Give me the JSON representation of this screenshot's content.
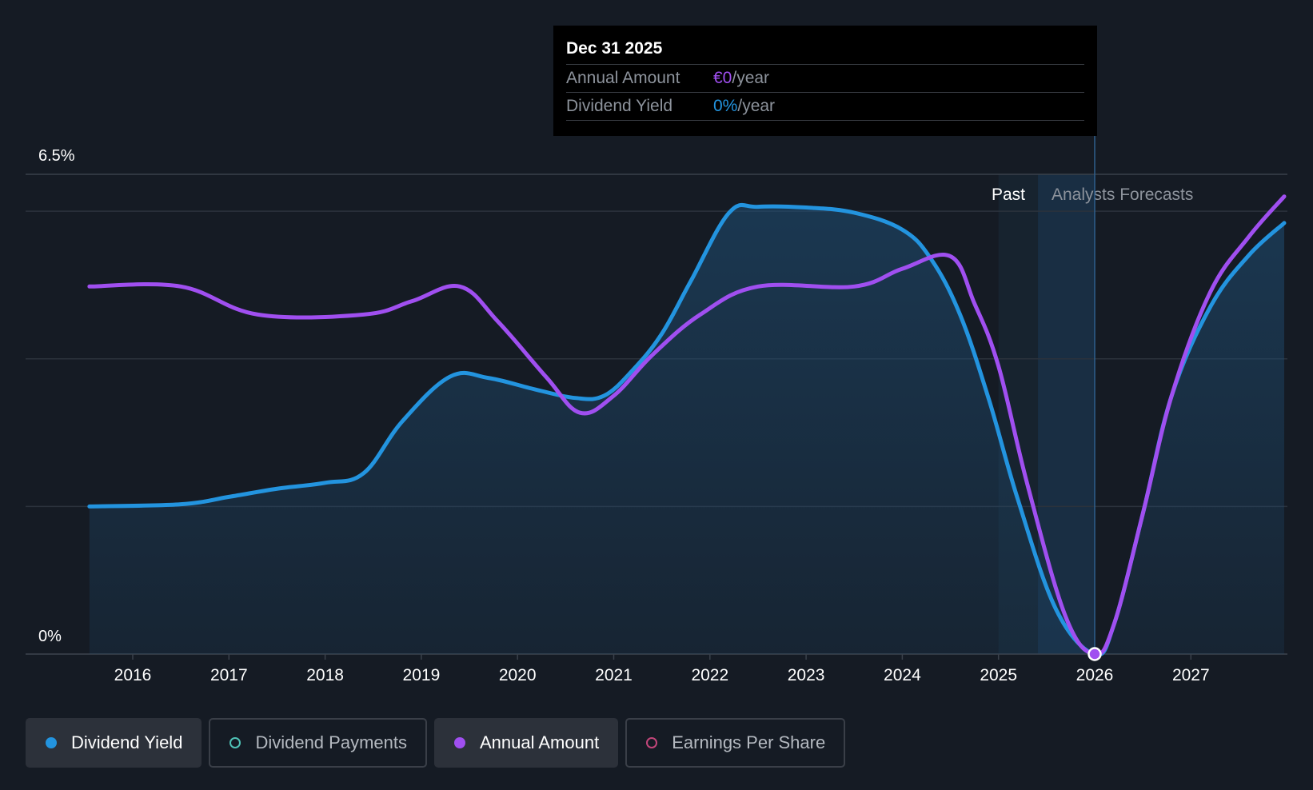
{
  "colors": {
    "background": "#151b24",
    "dividend_yield": "#2394df",
    "annual_amount": "#a04ff0",
    "dividend_payments": "#4fc2b6",
    "earnings_per_share": "#c2467a",
    "grid": "#2b323c",
    "text": "#ffffff",
    "muted_text": "#8d939c"
  },
  "tooltip": {
    "date": "Dec 31 2025",
    "rows": [
      {
        "label": "Annual Amount",
        "value": "€0",
        "unit": "/year",
        "color": "#a04ff0"
      },
      {
        "label": "Dividend Yield",
        "value": "0%",
        "unit": "/year",
        "color": "#2394df"
      }
    ]
  },
  "legend": [
    {
      "label": "Dividend Yield",
      "color": "#2394df",
      "active": true,
      "icon": "filled-dot-icon"
    },
    {
      "label": "Dividend Payments",
      "color": "#4fc2b6",
      "active": false,
      "icon": "hollow-dot-icon"
    },
    {
      "label": "Annual Amount",
      "color": "#a04ff0",
      "active": true,
      "icon": "filled-dot-icon"
    },
    {
      "label": "Earnings Per Share",
      "color": "#c2467a",
      "active": false,
      "icon": "hollow-dot-icon"
    }
  ],
  "chart_data": {
    "type": "area",
    "title": "",
    "xlabel": "",
    "ylabel": "",
    "ylim": [
      0,
      6.5
    ],
    "xlim": [
      2015.05,
      2027.97
    ],
    "y_tick_labels": [
      {
        "value": 6.5,
        "label": "6.5%"
      },
      {
        "value": 0,
        "label": "0%"
      }
    ],
    "x_ticks": [
      2016,
      2017,
      2018,
      2019,
      2020,
      2021,
      2022,
      2023,
      2024,
      2025,
      2026,
      2027
    ],
    "gridlines": [
      0,
      2,
      4,
      6
    ],
    "grid": true,
    "past_label": "Past",
    "forecast_label": "Analysts Forecasts",
    "forecast_start": 2025.0,
    "hover_x": 2026.0,
    "series": [
      {
        "name": "Dividend Yield",
        "color": "#2394df",
        "filled": true,
        "points": [
          [
            2015.55,
            2.0
          ],
          [
            2016.5,
            2.03
          ],
          [
            2017.0,
            2.13
          ],
          [
            2017.5,
            2.24
          ],
          [
            2018.0,
            2.32
          ],
          [
            2018.4,
            2.45
          ],
          [
            2018.8,
            3.15
          ],
          [
            2019.3,
            3.76
          ],
          [
            2019.7,
            3.74
          ],
          [
            2020.2,
            3.58
          ],
          [
            2020.6,
            3.47
          ],
          [
            2020.9,
            3.5
          ],
          [
            2021.2,
            3.85
          ],
          [
            2021.5,
            4.34
          ],
          [
            2021.8,
            5.05
          ],
          [
            2022.2,
            5.98
          ],
          [
            2022.5,
            6.06
          ],
          [
            2023.0,
            6.05
          ],
          [
            2023.5,
            5.98
          ],
          [
            2024.0,
            5.75
          ],
          [
            2024.3,
            5.35
          ],
          [
            2024.6,
            4.6
          ],
          [
            2024.9,
            3.45
          ],
          [
            2025.2,
            2.1
          ],
          [
            2025.6,
            0.6
          ],
          [
            2026.0,
            0.0
          ],
          [
            2026.2,
            0.4
          ],
          [
            2026.5,
            1.9
          ],
          [
            2026.8,
            3.5
          ],
          [
            2027.2,
            4.7
          ],
          [
            2027.6,
            5.4
          ],
          [
            2027.97,
            5.84
          ]
        ]
      },
      {
        "name": "Annual Amount",
        "color": "#a04ff0",
        "filled": false,
        "points": [
          [
            2015.55,
            4.98
          ],
          [
            2016.5,
            4.98
          ],
          [
            2017.3,
            4.6
          ],
          [
            2018.4,
            4.6
          ],
          [
            2018.9,
            4.78
          ],
          [
            2019.4,
            4.98
          ],
          [
            2019.8,
            4.5
          ],
          [
            2020.3,
            3.75
          ],
          [
            2020.65,
            3.27
          ],
          [
            2021.0,
            3.5
          ],
          [
            2021.4,
            4.05
          ],
          [
            2021.9,
            4.6
          ],
          [
            2022.5,
            4.98
          ],
          [
            2023.5,
            4.98
          ],
          [
            2024.0,
            5.22
          ],
          [
            2024.5,
            5.39
          ],
          [
            2024.75,
            4.75
          ],
          [
            2025.0,
            3.9
          ],
          [
            2025.3,
            2.3
          ],
          [
            2025.7,
            0.5
          ],
          [
            2026.0,
            0.0
          ],
          [
            2026.2,
            0.4
          ],
          [
            2026.5,
            1.9
          ],
          [
            2026.8,
            3.5
          ],
          [
            2027.2,
            4.9
          ],
          [
            2027.6,
            5.65
          ],
          [
            2027.97,
            6.2
          ]
        ]
      }
    ]
  }
}
